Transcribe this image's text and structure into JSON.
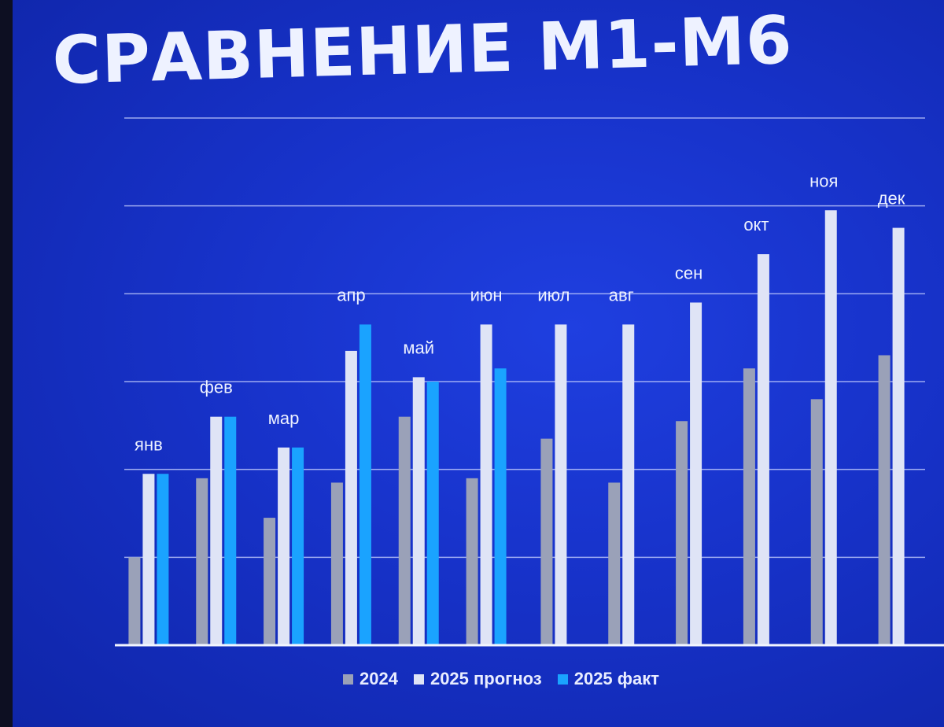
{
  "title": "СРАВНЕНИЕ М1-М6",
  "colors": {
    "background": "#1732c9",
    "grid": "#c9d3ff",
    "series_2024": "#9aa1b8",
    "series_2025_forecast": "#dfe4f6",
    "series_2025_fact": "#1aa3ff",
    "label": "#eef2ff"
  },
  "chart_data": {
    "type": "bar",
    "categories": [
      "янв",
      "фев",
      "мар",
      "апр",
      "май",
      "июн",
      "июл",
      "авг",
      "сен",
      "окт",
      "ноя",
      "дек"
    ],
    "series": [
      {
        "name": "2024",
        "values": [
          1.0,
          1.9,
          1.45,
          1.85,
          2.6,
          1.9,
          2.35,
          1.85,
          2.55,
          3.15,
          2.8,
          3.3
        ]
      },
      {
        "name": "2025 прогноз",
        "values": [
          1.95,
          2.6,
          2.25,
          3.35,
          3.05,
          3.65,
          3.65,
          3.65,
          3.9,
          4.45,
          4.95,
          4.75
        ]
      },
      {
        "name": "2025 факт",
        "values": [
          1.95,
          2.6,
          2.25,
          3.65,
          3.0,
          3.15,
          null,
          null,
          null,
          null,
          null,
          null
        ]
      }
    ],
    "xlabel": "",
    "ylabel": "",
    "ylim": [
      0,
      6
    ],
    "grid": true,
    "legend": "bottom-center"
  }
}
